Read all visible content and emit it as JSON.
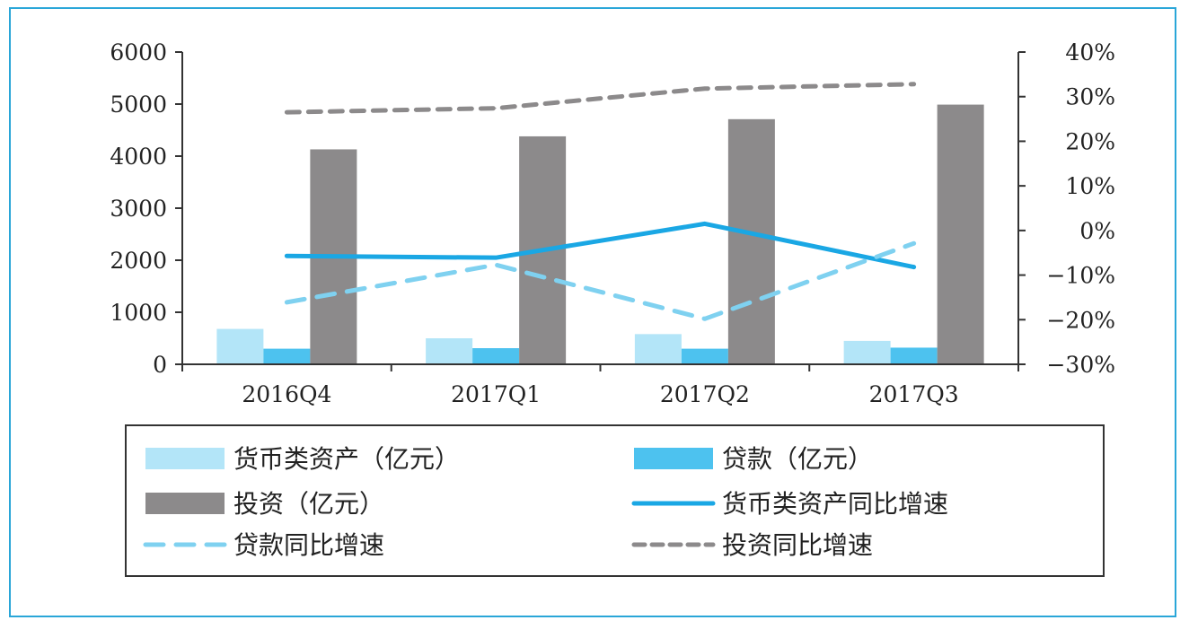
{
  "chart_data": {
    "type": "bar",
    "categories": [
      "2016Q4",
      "2017Q1",
      "2017Q2",
      "2017Q3"
    ],
    "series": [
      {
        "name": "货币类资产（亿元）",
        "kind": "bar",
        "axis": "left",
        "color": "#b3e5f8",
        "values": [
          680,
          500,
          580,
          450
        ]
      },
      {
        "name": "贷款（亿元）",
        "kind": "bar",
        "axis": "left",
        "color": "#4dc2ef",
        "values": [
          300,
          310,
          300,
          320
        ]
      },
      {
        "name": "投资（亿元）",
        "kind": "bar",
        "axis": "left",
        "color": "#8c8a8b",
        "values": [
          4130,
          4380,
          4710,
          4990
        ]
      },
      {
        "name": "货币类资产同比增速",
        "kind": "line",
        "style": "solid",
        "axis": "right",
        "color": "#1aa7e4",
        "values": [
          -5.7,
          -6.1,
          1.5,
          -8.2
        ]
      },
      {
        "name": "贷款同比增速",
        "kind": "line",
        "style": "dashed",
        "axis": "right",
        "color": "#7fd1f0",
        "values": [
          -16.1,
          -7.7,
          -19.8,
          -2.9
        ]
      },
      {
        "name": "投资同比增速",
        "kind": "line",
        "style": "dashed",
        "axis": "right",
        "color": "#8c8a8b",
        "values": [
          26.5,
          27.4,
          31.8,
          32.8
        ]
      }
    ],
    "y_left": {
      "min": 0,
      "max": 6000,
      "ticks": [
        "0",
        "1000",
        "2000",
        "3000",
        "4000",
        "5000",
        "6000"
      ]
    },
    "y_right": {
      "min": -30,
      "max": 40,
      "ticks": [
        "−30%",
        "−20%",
        "−10%",
        "0%",
        "10%",
        "20%",
        "30%",
        "40%"
      ]
    },
    "legend_placement": "bottom",
    "grid": false
  },
  "colors": {
    "frame": "#2aa6d8",
    "axis": "#333333"
  }
}
